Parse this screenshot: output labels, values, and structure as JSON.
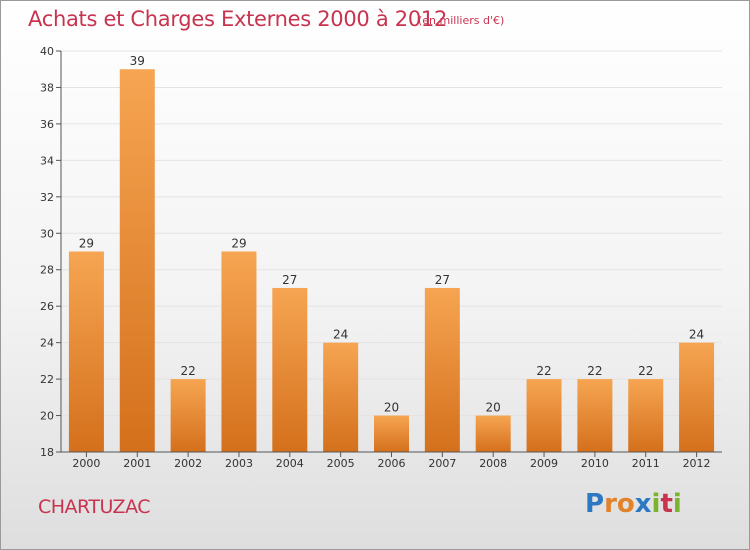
{
  "header": {
    "title": "Achats et Charges Externes 2000 à 2012",
    "unit": "(en milliers d'€)"
  },
  "footer": {
    "commune": "CHARTUZAC",
    "logo_letters": [
      "P",
      "r",
      "o",
      "x",
      "i",
      "t",
      "i"
    ],
    "logo_colors": [
      "#2d78c2",
      "#e2832b",
      "#e2832b",
      "#2d78c2",
      "#7bb32e",
      "#c8334f",
      "#7bb32e"
    ]
  },
  "colors": {
    "title": "#c8334f",
    "bar_light": "#f6a552",
    "bar_dark": "#d4701c",
    "grid": "#e3e3e3"
  },
  "chart_data": {
    "type": "bar",
    "title": "Achats et Charges Externes 2000 à 2012",
    "subtitle": "(en milliers d'€)",
    "xlabel": "",
    "ylabel": "",
    "categories": [
      "2000",
      "2001",
      "2002",
      "2003",
      "2004",
      "2005",
      "2006",
      "2007",
      "2008",
      "2009",
      "2010",
      "2011",
      "2012"
    ],
    "values": [
      29,
      39,
      22,
      29,
      27,
      24,
      20,
      27,
      20,
      22,
      22,
      22,
      24
    ],
    "ylim": [
      18,
      40
    ],
    "yticks": [
      18,
      20,
      22,
      24,
      26,
      28,
      30,
      32,
      34,
      36,
      38,
      40
    ],
    "grid": true,
    "legend": "none"
  }
}
